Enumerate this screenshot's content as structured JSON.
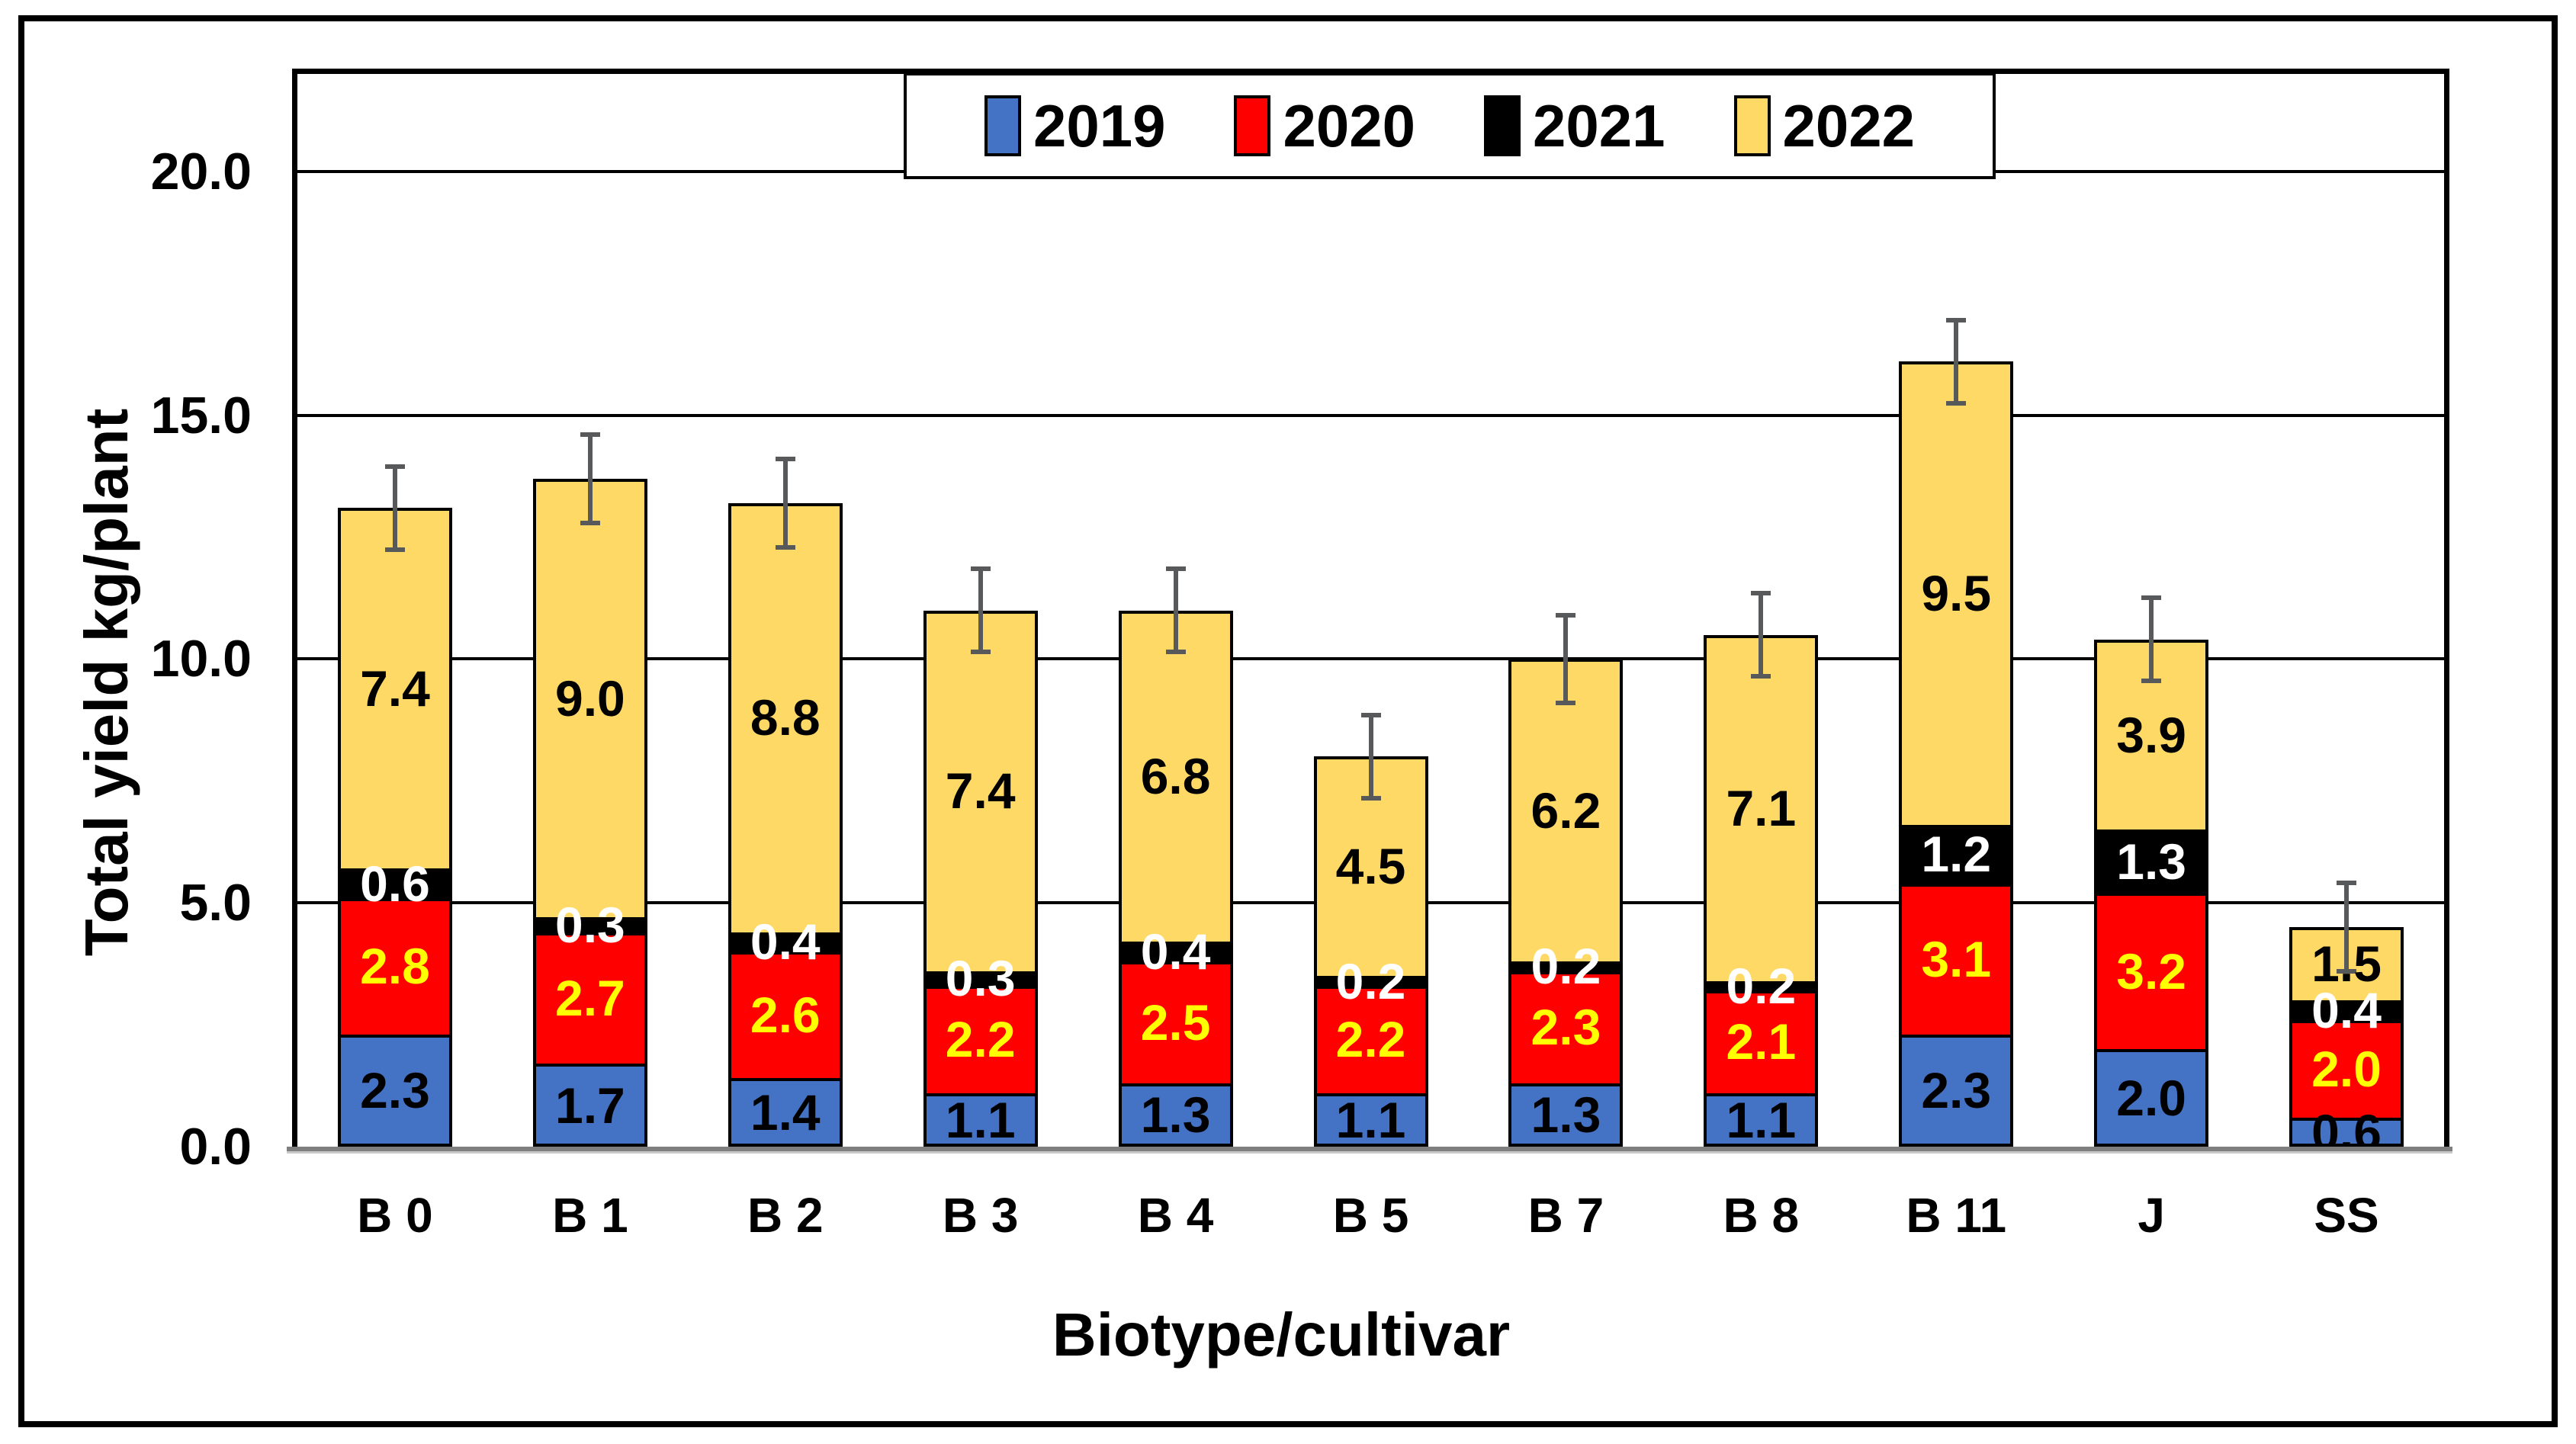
{
  "figure": {
    "background_color": "#FFFFFF",
    "border_color": "#000000",
    "gridline_color": "#000000",
    "baseline_color": "#7F7F7F",
    "error_bar_color": "#58595B"
  },
  "chart_data": {
    "type": "bar",
    "stacked": true,
    "title": "",
    "xlabel": "Biotype/cultivar",
    "ylabel": "Total yield kg/plant",
    "ylim": [
      0,
      22
    ],
    "yticks": [
      0,
      5,
      10,
      15,
      20
    ],
    "ytick_labels": [
      "0.0",
      "5.0",
      "10.0",
      "15.0",
      "20.0"
    ],
    "grid": true,
    "legend_position": "top",
    "categories": [
      "B 0",
      "B 1",
      "B 2",
      "B 3",
      "B 4",
      "B 5",
      "B 7",
      "B 8",
      "B 11",
      "J",
      "SS"
    ],
    "series": [
      {
        "name": "2019",
        "color": "#4472C4",
        "label_color": "#000000",
        "values": [
          2.3,
          1.7,
          1.4,
          1.1,
          1.3,
          1.1,
          1.3,
          1.1,
          2.3,
          2.0,
          0.6
        ]
      },
      {
        "name": "2020",
        "color": "#FF0000",
        "label_color": "#FFFF00",
        "values": [
          2.8,
          2.7,
          2.6,
          2.2,
          2.5,
          2.2,
          2.3,
          2.1,
          3.1,
          3.2,
          2.0
        ]
      },
      {
        "name": "2021",
        "color": "#000000",
        "label_color": "#FFFFFF",
        "values": [
          0.6,
          0.3,
          0.4,
          0.3,
          0.4,
          0.2,
          0.2,
          0.2,
          1.2,
          1.3,
          0.4
        ]
      },
      {
        "name": "2022",
        "color": "#FFD966",
        "label_color": "#000000",
        "values": [
          7.4,
          9.0,
          8.8,
          7.4,
          6.8,
          4.5,
          6.2,
          7.1,
          9.5,
          3.9,
          1.5
        ]
      }
    ],
    "totals": [
      13.1,
      13.7,
      13.2,
      11.0,
      11.0,
      8.0,
      10.0,
      10.5,
      16.1,
      10.4,
      4.5
    ],
    "error_bars": {
      "symmetric": true,
      "values": [
        0.9,
        0.95,
        0.95,
        0.9,
        0.9,
        0.9,
        0.95,
        0.9,
        0.9,
        0.9,
        0.95
      ]
    }
  }
}
